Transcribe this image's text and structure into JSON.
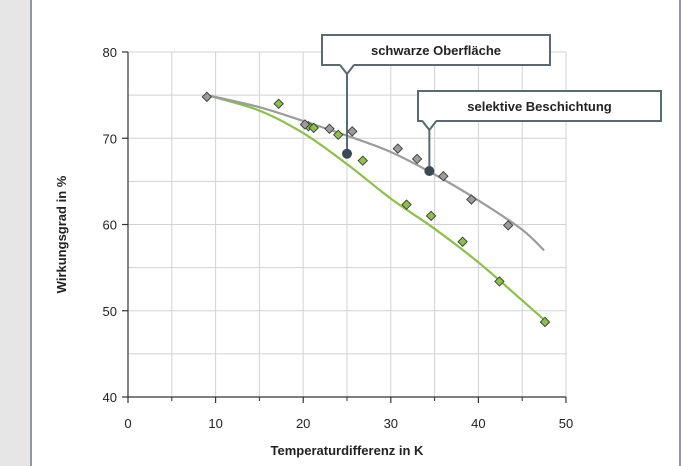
{
  "chart_data": {
    "type": "scatter",
    "title": "",
    "xlabel": "Temperaturdifferenz in K",
    "ylabel": "Wirkungsgrad in %",
    "xlim": [
      0,
      50
    ],
    "ylim": [
      40,
      80
    ],
    "x_ticks": [
      "0",
      "10",
      "20",
      "30",
      "40",
      "50"
    ],
    "y_ticks": [
      "40",
      "50",
      "60",
      "70",
      "80"
    ],
    "grid": true,
    "series": [
      {
        "name": "schwarze Oberfläche",
        "color": "#8cc04a",
        "points": [
          [
            17.2,
            74.0
          ],
          [
            20.6,
            71.4
          ],
          [
            21.2,
            71.2
          ],
          [
            24.0,
            70.4
          ],
          [
            26.8,
            67.4
          ],
          [
            31.8,
            62.3
          ],
          [
            34.6,
            61.0
          ],
          [
            38.2,
            58.0
          ],
          [
            42.4,
            53.4
          ],
          [
            47.6,
            48.7
          ]
        ],
        "trend": [
          [
            9,
            75.0
          ],
          [
            15,
            73.2
          ],
          [
            20,
            70.6
          ],
          [
            25,
            67.0
          ],
          [
            30,
            63.0
          ],
          [
            35,
            59.5
          ],
          [
            40,
            55.6
          ],
          [
            45,
            51.2
          ],
          [
            48,
            48.5
          ]
        ]
      },
      {
        "name": "selektive Beschichtung",
        "color": "#9c9c9c",
        "points": [
          [
            9.0,
            74.8
          ],
          [
            20.2,
            71.6
          ],
          [
            23.0,
            71.1
          ],
          [
            25.6,
            70.8
          ],
          [
            30.8,
            68.8
          ],
          [
            33.0,
            67.6
          ],
          [
            36.0,
            65.6
          ],
          [
            39.2,
            62.9
          ],
          [
            43.4,
            59.9
          ]
        ],
        "trend": [
          [
            9,
            75.0
          ],
          [
            15,
            73.6
          ],
          [
            20,
            72.0
          ],
          [
            25,
            70.3
          ],
          [
            30,
            68.4
          ],
          [
            35,
            65.8
          ],
          [
            40,
            62.8
          ],
          [
            45,
            59.4
          ],
          [
            47.5,
            57.0
          ]
        ]
      }
    ],
    "annotations": [
      {
        "text": "schwarze Oberfläche",
        "x": 25.0,
        "y": 68.2
      },
      {
        "text": "selektive Beschichtung",
        "x": 34.4,
        "y": 66.2
      }
    ]
  }
}
